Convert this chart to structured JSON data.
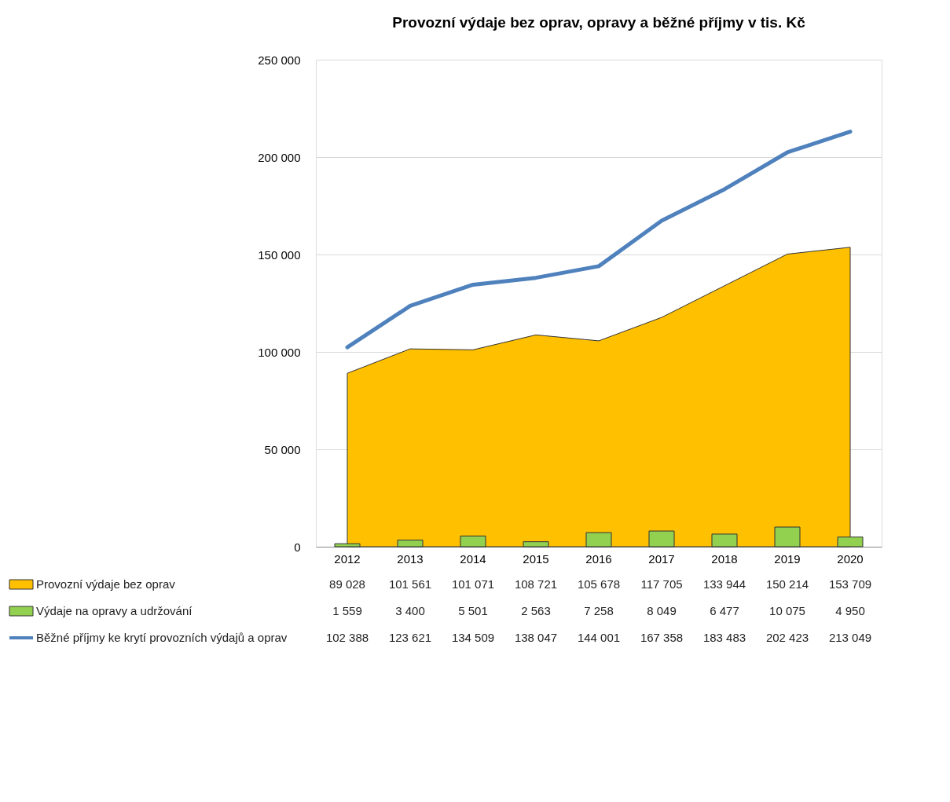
{
  "chart_data": {
    "type": "area",
    "title": "Provozní výdaje bez oprav, opravy a běžné příjmy v tis. Kč",
    "categories": [
      "2012",
      "2013",
      "2014",
      "2015",
      "2016",
      "2017",
      "2018",
      "2019",
      "2020"
    ],
    "series": [
      {
        "name": "Provozní výdaje bez oprav",
        "color": "#ffc000",
        "values": [
          89028,
          101561,
          101071,
          108721,
          105678,
          117705,
          133944,
          150214,
          153709
        ]
      },
      {
        "name": "Výdaje na opravy a udržování",
        "type": "bar",
        "color": "#92d050",
        "values": [
          1559,
          3400,
          5501,
          2563,
          7258,
          8049,
          6477,
          10075,
          4950
        ]
      },
      {
        "name": "Běžné příjmy ke krytí provozních výdajů a oprav",
        "type": "line",
        "color": "#4f81bd",
        "values": [
          102388,
          123621,
          134509,
          138047,
          144001,
          167358,
          183483,
          202423,
          213049
        ]
      }
    ],
    "ylim": [
      0,
      250000
    ],
    "yticks": [
      {
        "value": 0,
        "label": "0"
      },
      {
        "value": 50000,
        "label": "50 000"
      },
      {
        "value": 100000,
        "label": "100 000"
      },
      {
        "value": 150000,
        "label": "150 000"
      },
      {
        "value": 200000,
        "label": "200 000"
      },
      {
        "value": 250000,
        "label": "250 000"
      }
    ],
    "grid": "y",
    "legend": "bottom",
    "data_labels": true
  }
}
